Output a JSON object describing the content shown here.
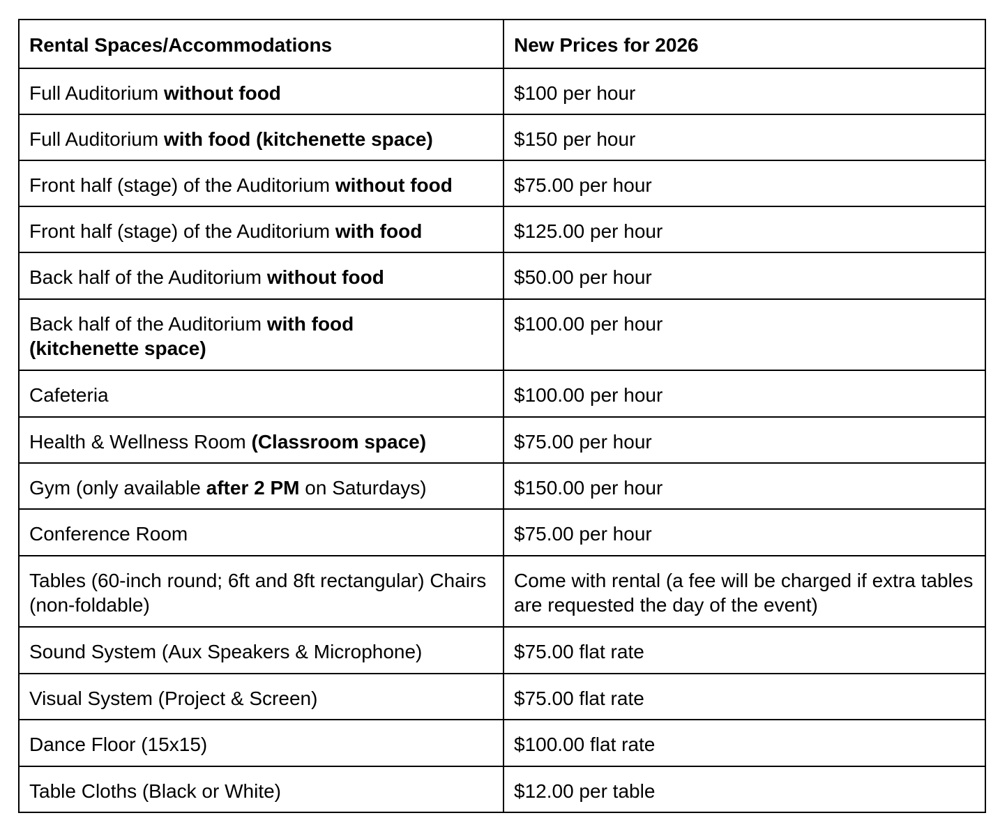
{
  "header": [
    "Rental Spaces/Accommodations",
    "New Prices for 2026"
  ],
  "rows": [
    {
      "space": [
        [
          "Full Auditorium ",
          false
        ],
        [
          "without food",
          true
        ]
      ],
      "price": [
        [
          "$100 per hour",
          false
        ]
      ]
    },
    {
      "space": [
        [
          "Full Auditorium ",
          false
        ],
        [
          "with food (kitchenette space)",
          true
        ]
      ],
      "price": [
        [
          "$150 per hour",
          false
        ]
      ]
    },
    {
      "space": [
        [
          "Front half (stage) of the Auditorium ",
          false
        ],
        [
          "without food",
          true
        ]
      ],
      "price": [
        [
          "$75.00 per hour",
          false
        ]
      ]
    },
    {
      "space": [
        [
          "Front half (stage) of the Auditorium ",
          false
        ],
        [
          "with food",
          true
        ]
      ],
      "price": [
        [
          "$125.00 per hour",
          false
        ]
      ]
    },
    {
      "space": [
        [
          "Back half of the Auditorium ",
          false
        ],
        [
          "without food",
          true
        ]
      ],
      "price": [
        [
          "$50.00 per hour",
          false
        ]
      ]
    },
    {
      "space": [
        [
          "Back half of the Auditorium ",
          false
        ],
        [
          "with food (kitchenette space)",
          true
        ]
      ],
      "price": [
        [
          "$100.00 per hour",
          false
        ]
      ]
    },
    {
      "space": [
        [
          "Cafeteria",
          false
        ]
      ],
      "price": [
        [
          "$100.00 per hour",
          false
        ]
      ]
    },
    {
      "space": [
        [
          "Health & Wellness Room ",
          false
        ],
        [
          "(Classroom space)",
          true
        ]
      ],
      "price": [
        [
          "$75.00 per hour",
          false
        ]
      ]
    },
    {
      "space": [
        [
          "Gym (only available ",
          false
        ],
        [
          "after 2 PM",
          true
        ],
        [
          " on Saturdays)",
          false
        ]
      ],
      "price": [
        [
          "$150.00 per hour",
          false
        ]
      ]
    },
    {
      "space": [
        [
          "Conference Room",
          false
        ]
      ],
      "price": [
        [
          "$75.00 per hour",
          false
        ]
      ]
    },
    {
      "space": [
        [
          "Tables (60-inch round; 6ft and 8ft rectangular) Chairs (non-foldable)",
          false
        ]
      ],
      "price": [
        [
          "Come with rental (a fee will be charged if extra tables are requested the day of the event)",
          false
        ]
      ]
    },
    {
      "space": [
        [
          "Sound System (Aux Speakers & Microphone)",
          false
        ]
      ],
      "price": [
        [
          "$75.00 flat rate",
          false
        ]
      ]
    },
    {
      "space": [
        [
          "Visual System (Project & Screen)",
          false
        ]
      ],
      "price": [
        [
          "$75.00 flat rate",
          false
        ]
      ]
    },
    {
      "space": [
        [
          "Dance Floor (15x15)",
          false
        ]
      ],
      "price": [
        [
          "$100.00 flat rate",
          false
        ]
      ]
    },
    {
      "space": [
        [
          "Table Cloths (Black or White)",
          false
        ]
      ],
      "price": [
        [
          "$12.00 per table",
          false
        ]
      ]
    }
  ]
}
